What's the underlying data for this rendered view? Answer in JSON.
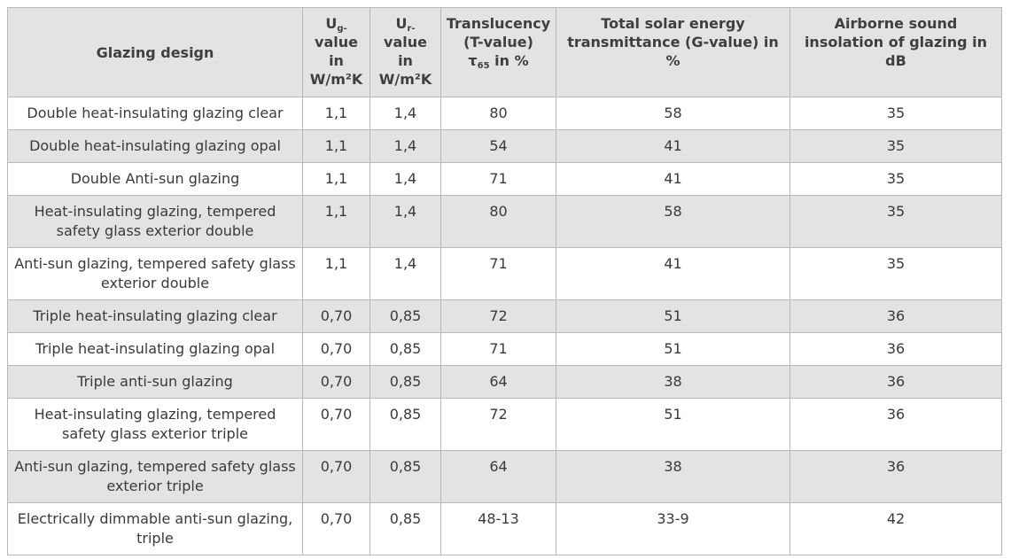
{
  "headers": {
    "design": "Glazing design",
    "ug": {
      "symbol": "U",
      "subscript": "g-",
      "rest": "value in W/m²K"
    },
    "ur": {
      "symbol": "U",
      "subscript": "r-",
      "rest": "value in W/m²K"
    },
    "translucency": {
      "text": "Translucency (T-value)",
      "tau": "τ",
      "tau_sub": "65",
      "tail": " in %"
    },
    "solar": "Total solar energy transmittance (G-value) in %",
    "sound": "Airborne sound insolation of glazing in dB"
  },
  "rows": [
    {
      "design": "Double heat-insulating glazing clear",
      "ug": "1,1",
      "ur": "1,4",
      "t": "80",
      "g": "58",
      "db": "35"
    },
    {
      "design": "Double heat-insulating glazing opal",
      "ug": "1,1",
      "ur": "1,4",
      "t": "54",
      "g": "41",
      "db": "35"
    },
    {
      "design": "Double Anti-sun glazing",
      "ug": "1,1",
      "ur": "1,4",
      "t": "71",
      "g": "41",
      "db": "35"
    },
    {
      "design": "Heat-insulating glazing, tempered safety glass exterior double",
      "ug": "1,1",
      "ur": "1,4",
      "t": "80",
      "g": "58",
      "db": "35"
    },
    {
      "design": "Anti-sun glazing, tempered safety glass exterior double",
      "ug": "1,1",
      "ur": "1,4",
      "t": "71",
      "g": "41",
      "db": "35"
    },
    {
      "design": "Triple heat-insulating glazing clear",
      "ug": "0,70",
      "ur": "0,85",
      "t": "72",
      "g": "51",
      "db": "36"
    },
    {
      "design": "Triple heat-insulating glazing opal",
      "ug": "0,70",
      "ur": "0,85",
      "t": "71",
      "g": "51",
      "db": "36"
    },
    {
      "design": "Triple anti-sun glazing",
      "ug": "0,70",
      "ur": "0,85",
      "t": "64",
      "g": "38",
      "db": "36"
    },
    {
      "design": "Heat-insulating glazing, tempered safety glass exterior triple",
      "ug": "0,70",
      "ur": "0,85",
      "t": "72",
      "g": "51",
      "db": "36"
    },
    {
      "design": "Anti-sun glazing, tempered safety glass exterior triple",
      "ug": "0,70",
      "ur": "0,85",
      "t": "64",
      "g": "38",
      "db": "36"
    },
    {
      "design": "Electrically dimmable anti-sun glazing, triple",
      "ug": "0,70",
      "ur": "0,85",
      "t": "48-13",
      "g": "33-9",
      "db": "42"
    }
  ],
  "colors": {
    "shade": "#e3e3e3",
    "border": "#b8b8b8",
    "text": "#3a3a3a"
  }
}
